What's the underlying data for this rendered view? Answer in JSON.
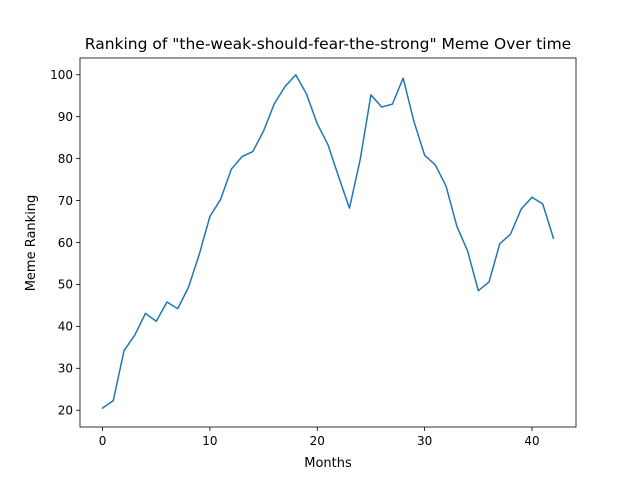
{
  "chart_data": {
    "type": "line",
    "title": "Ranking of \"the-weak-should-fear-the-strong\" Meme Over time",
    "xlabel": "Months",
    "ylabel": "Meme Ranking",
    "xlim": [
      -2.1,
      44.1
    ],
    "ylim": [
      16.0,
      104.0
    ],
    "x_ticks": [
      0,
      10,
      20,
      30,
      40
    ],
    "y_ticks": [
      20,
      30,
      40,
      50,
      60,
      70,
      80,
      90,
      100
    ],
    "grid": false,
    "legend": "none",
    "series": [
      {
        "color": "#1f77b4",
        "x": [
          0,
          1,
          2,
          3,
          4,
          5,
          6,
          7,
          8,
          9,
          10,
          11,
          12,
          13,
          14,
          15,
          16,
          17,
          18,
          19,
          20,
          21,
          22,
          23,
          24,
          25,
          26,
          27,
          28,
          29,
          30,
          31,
          32,
          33,
          34,
          35,
          36,
          37,
          38,
          39,
          40,
          41,
          42
        ],
        "values": [
          20.5,
          22.3,
          34.2,
          37.9,
          43.1,
          41.2,
          45.8,
          44.2,
          49.3,
          57.1,
          66.2,
          70.3,
          77.5,
          80.5,
          81.7,
          86.6,
          93.1,
          97.2,
          100.0,
          95.4,
          88.3,
          83.3,
          75.6,
          68.2,
          79.8,
          95.2,
          92.3,
          93.0,
          99.2,
          88.9,
          80.8,
          78.5,
          73.4,
          63.9,
          58.0,
          48.5,
          50.6,
          59.7,
          62.0,
          68.0,
          70.8,
          69.2,
          61.0
        ]
      }
    ]
  }
}
